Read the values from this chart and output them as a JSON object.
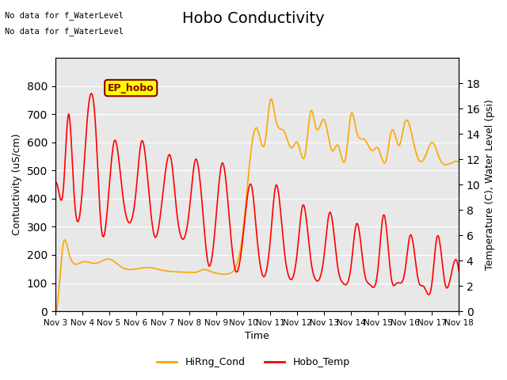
{
  "title": "Hobo Conductivity",
  "xlabel": "Time",
  "ylabel_left": "Contuctivity (uS/cm)",
  "ylabel_right": "Temperature (C), Water Level (psi)",
  "top_text": [
    "No data for f_WaterLevel",
    "No data for f_WaterLevel"
  ],
  "annotation": "EP_hobo",
  "x_ticks": [
    "Nov 3",
    "Nov 4",
    "Nov 5",
    "Nov 6",
    "Nov 7",
    "Nov 8",
    "Nov 9",
    "Nov 10",
    "Nov 11",
    "Nov 12",
    "Nov 13",
    "Nov 14",
    "Nov 15",
    "Nov 16",
    "Nov 17",
    "Nov 18"
  ],
  "ylim_left": [
    0,
    900
  ],
  "ylim_right": [
    0,
    20
  ],
  "yticks_left": [
    0,
    100,
    200,
    300,
    400,
    500,
    600,
    700,
    800
  ],
  "yticks_right": [
    0,
    2,
    4,
    6,
    8,
    10,
    12,
    14,
    16,
    18
  ],
  "legend": [
    {
      "label": "HiRng_Cond",
      "color": "orange",
      "linestyle": "-"
    },
    {
      "label": "Hobo_Temp",
      "color": "red",
      "linestyle": "-"
    }
  ],
  "bg_color": "#e8e8e8",
  "title_fontsize": 14,
  "label_fontsize": 9
}
